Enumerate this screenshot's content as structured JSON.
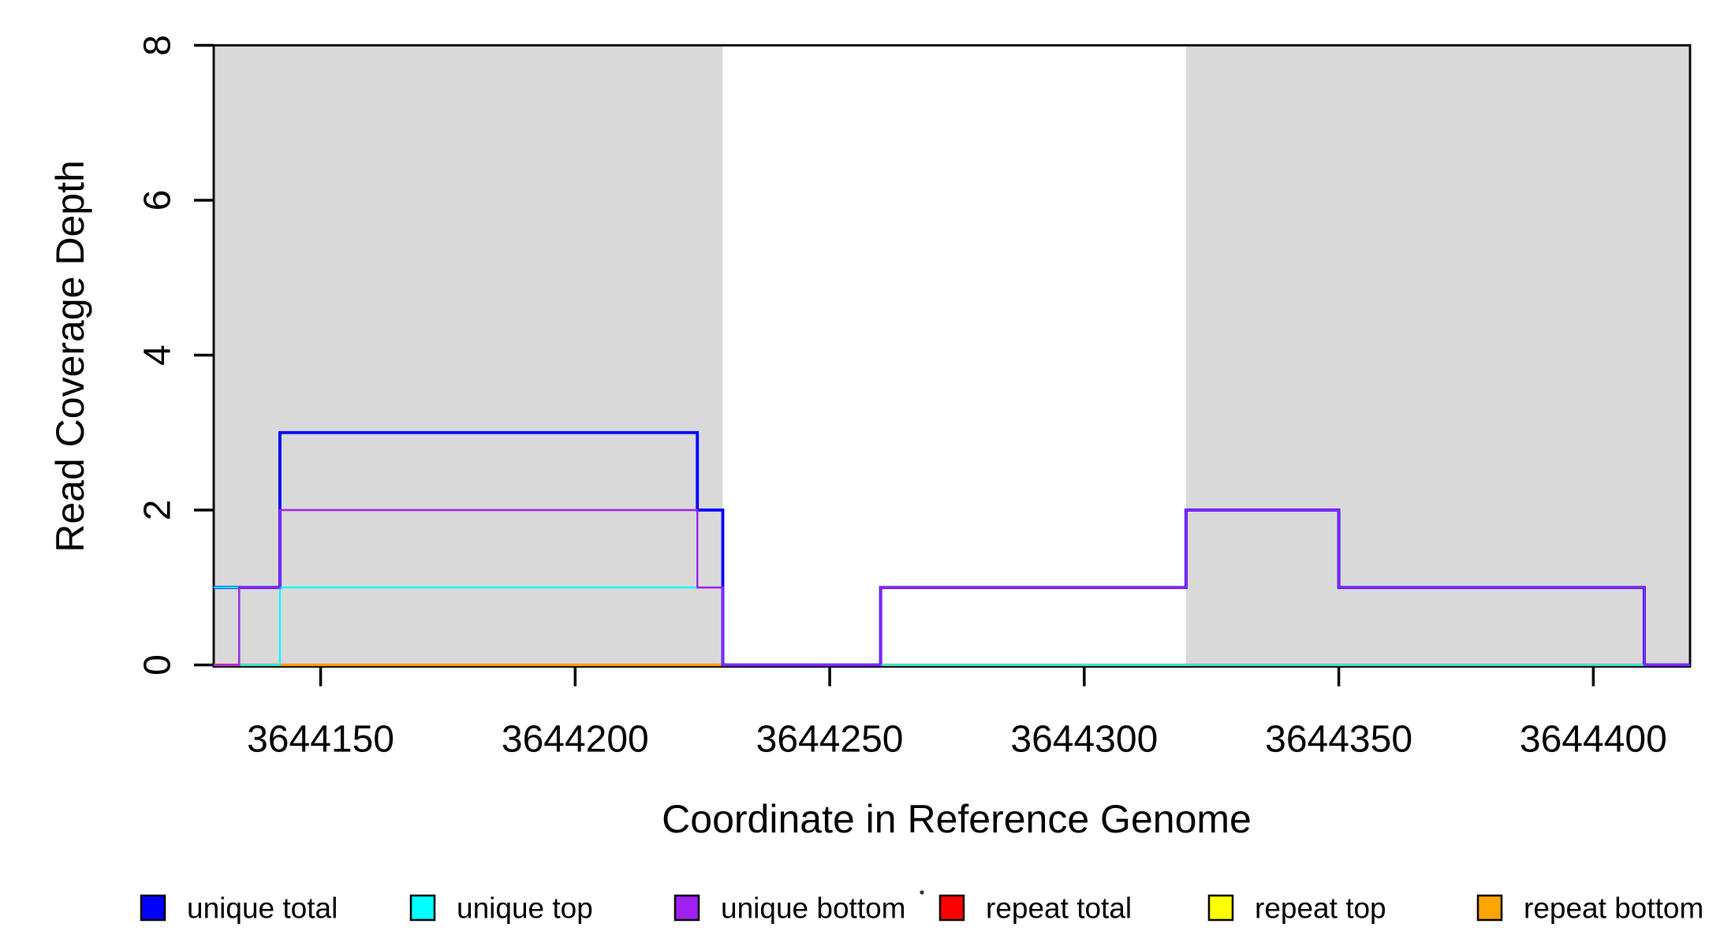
{
  "chart_data": {
    "type": "line",
    "subtype": "step",
    "title": "",
    "xlabel": "Coordinate in Reference Genome",
    "ylabel": "Read Coverage Depth",
    "xlim": [
      3644129,
      3644419
    ],
    "ylim": [
      0,
      8
    ],
    "xticks": [
      3644150,
      3644200,
      3644250,
      3644300,
      3644350,
      3644400
    ],
    "yticks": [
      0,
      2,
      4,
      6,
      8
    ],
    "grid": false,
    "axis_color": "#000000",
    "background_shading": {
      "color": "#d9d9d9",
      "regions": [
        [
          3644129,
          3644229
        ],
        [
          3644320,
          3644419
        ]
      ]
    },
    "series": [
      {
        "name": "repeat total",
        "color": "#ff0000",
        "width": 3.2,
        "points": [
          [
            3644129,
            0
          ],
          [
            3644419,
            0
          ]
        ]
      },
      {
        "name": "repeat top",
        "color": "#ffff00",
        "width": 2.2,
        "points": [
          [
            3644129,
            0
          ],
          [
            3644419,
            0
          ]
        ]
      },
      {
        "name": "repeat bottom",
        "color": "#ffa500",
        "width": 2.8,
        "points": [
          [
            3644129,
            0
          ],
          [
            3644419,
            0
          ]
        ]
      },
      {
        "name": "unique total",
        "color": "#0000ff",
        "width": 3.8,
        "points": [
          [
            3644129,
            1
          ],
          [
            3644142,
            3
          ],
          [
            3644224,
            2
          ],
          [
            3644229,
            0
          ],
          [
            3644260,
            1
          ],
          [
            3644320,
            2
          ],
          [
            3644350,
            1
          ],
          [
            3644410,
            0
          ],
          [
            3644419,
            0
          ]
        ]
      },
      {
        "name": "unique top",
        "color": "#00ffff",
        "width": 2.2,
        "points": [
          [
            3644129,
            1
          ],
          [
            3644134,
            0
          ],
          [
            3644142,
            1
          ],
          [
            3644229,
            0
          ],
          [
            3644419,
            0
          ]
        ]
      },
      {
        "name": "unique bottom",
        "color": "#a020f0",
        "width": 2.4,
        "points": [
          [
            3644129,
            0
          ],
          [
            3644134,
            1
          ],
          [
            3644142,
            2
          ],
          [
            3644224,
            1
          ],
          [
            3644229,
            0
          ],
          [
            3644260,
            1
          ],
          [
            3644320,
            2
          ],
          [
            3644350,
            1
          ],
          [
            3644410,
            0
          ],
          [
            3644419,
            0
          ]
        ]
      }
    ],
    "legend": {
      "position": "bottom",
      "entries": [
        {
          "label": "unique total",
          "color": "#0000ff"
        },
        {
          "label": "unique top",
          "color": "#00ffff"
        },
        {
          "label": "unique bottom",
          "color": "#a020f0"
        },
        {
          "label": "repeat total",
          "color": "#ff0000"
        },
        {
          "label": "repeat top",
          "color": "#ffff00"
        },
        {
          "label": "repeat bottom",
          "color": "#ffa500"
        }
      ],
      "stray_dot": "·"
    }
  }
}
